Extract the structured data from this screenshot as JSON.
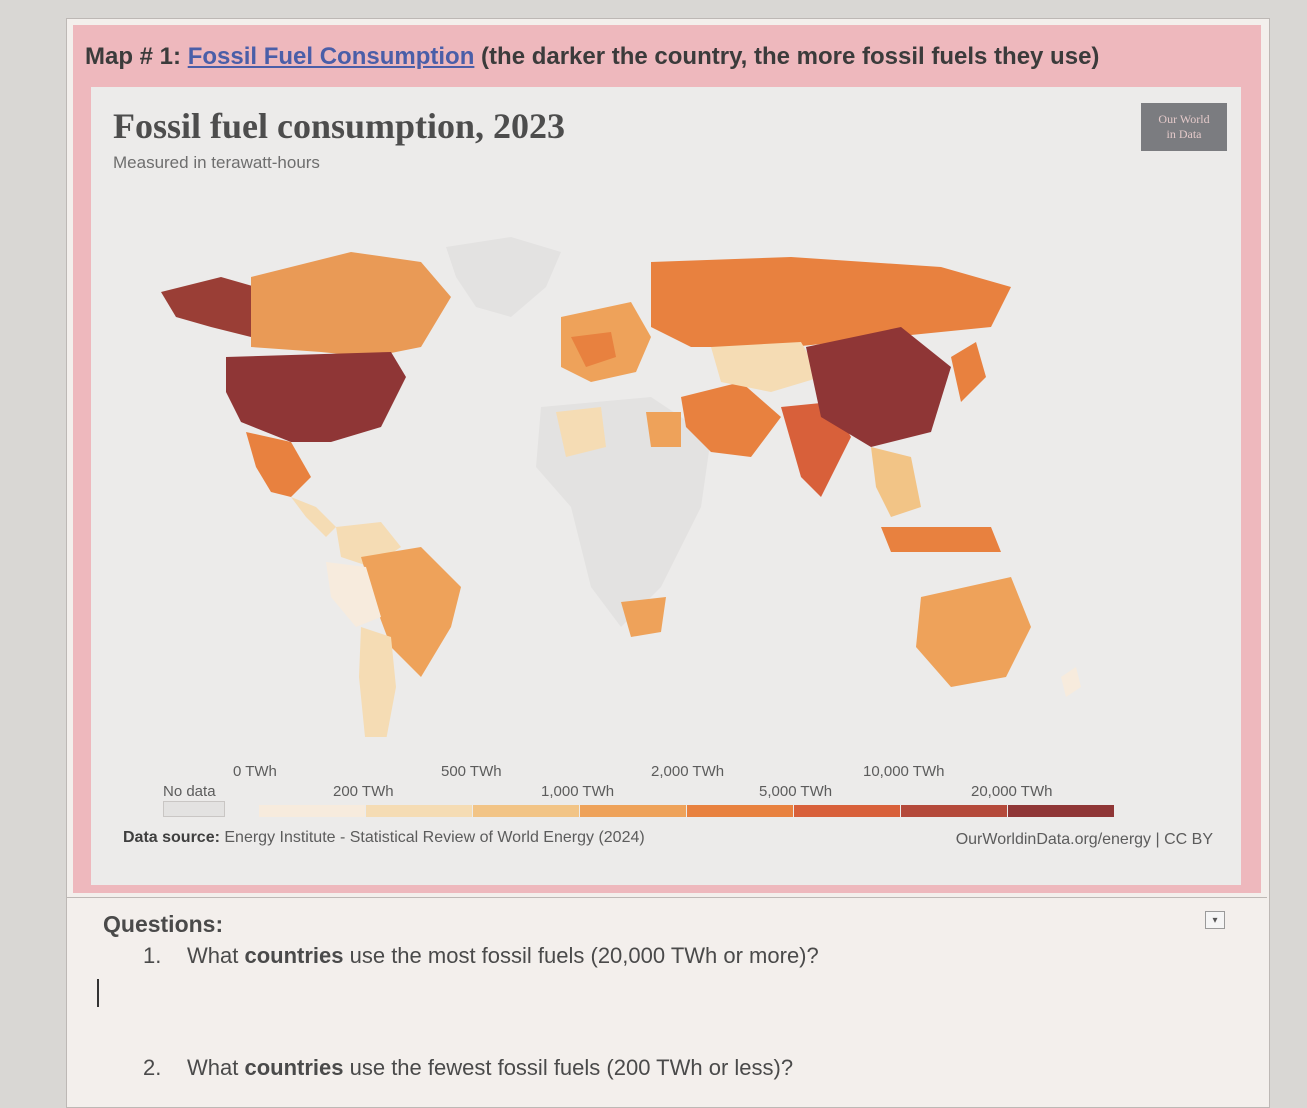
{
  "heading": {
    "prefix": "Map # 1: ",
    "link_text": "Fossil Fuel Consumption",
    "suffix": " (the darker the country, the more fossil fuels they use)"
  },
  "chart": {
    "title": "Fossil fuel consumption, 2023",
    "subtitle": "Measured in terawatt-hours",
    "logo_line1": "Our World",
    "logo_line2": "in Data",
    "source_label": "Data source:",
    "source_text": " Energy Institute - Statistical Review of World Energy (2024)",
    "link": "OurWorldinData.org/energy | CC BY"
  },
  "legend": {
    "no_data": "No data",
    "top_labels": [
      "0 TWh",
      "500 TWh",
      "2,000 TWh",
      "10,000 TWh"
    ],
    "bottom_labels": [
      "200 TWh",
      "1,000 TWh",
      "5,000 TWh",
      "20,000 TWh"
    ],
    "colors": [
      "#f7ebdd",
      "#f5dcb4",
      "#f2c486",
      "#eea25a",
      "#e8813f",
      "#d8603a",
      "#b4493a",
      "#8f3636"
    ],
    "nodata_color": "#e3e2e1"
  },
  "chart_data": {
    "type": "choropleth-map",
    "unit": "TWh",
    "bins": [
      "0",
      "200",
      "500",
      "1,000",
      "2,000",
      "5,000",
      "10,000",
      "20,000"
    ],
    "highlighted": {
      "highest": [
        "United States",
        "China"
      ],
      "high": [
        "Russia",
        "India"
      ]
    }
  },
  "questions": {
    "heading": "Questions:",
    "q1_num": "1.",
    "q1_pre": "What ",
    "q1_bold": "countries",
    "q1_post": " use the most fossil fuels (20,000 TWh or more)?",
    "q2_num": "2.",
    "q2_pre": "What ",
    "q2_bold": "countries",
    "q2_post": " use the fewest fossil fuels (200 TWh or less)?",
    "dropdown_icon": "▾"
  }
}
